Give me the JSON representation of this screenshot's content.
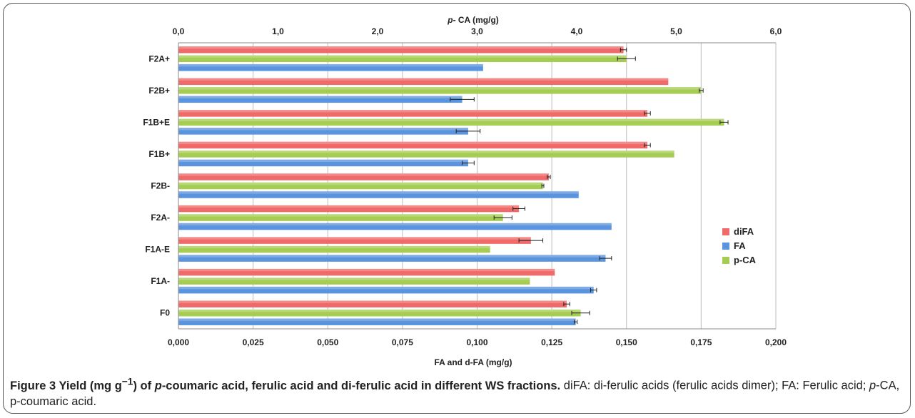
{
  "chart_data": {
    "type": "bar",
    "orientation": "horizontal",
    "categories": [
      "F2A+",
      "F2B+",
      "F1B+E",
      "F1B+",
      "F2B-",
      "F2A-",
      "F1A-E",
      "F1A-",
      "F0"
    ],
    "series": [
      {
        "name": "diFA",
        "color": "#ef6a68",
        "axis": "bottom",
        "values": [
          0.149,
          0.164,
          0.157,
          0.157,
          0.124,
          0.114,
          0.118,
          0.126,
          0.13
        ],
        "errors": [
          0.001,
          0.0,
          0.001,
          0.001,
          0.0005,
          0.002,
          0.004,
          0.0,
          0.001
        ]
      },
      {
        "name": "p-CA",
        "color": "#a6cd53",
        "axis": "top",
        "values": [
          4.5,
          5.25,
          5.48,
          4.98,
          3.66,
          3.26,
          3.13,
          3.53,
          4.04
        ],
        "errors": [
          0.09,
          0.02,
          0.04,
          0.0,
          0.01,
          0.09,
          0.0,
          0.0,
          0.09
        ]
      },
      {
        "name": "FA",
        "color": "#5b94de",
        "axis": "bottom",
        "values": [
          0.102,
          0.095,
          0.097,
          0.097,
          0.134,
          0.145,
          0.143,
          0.139,
          0.133
        ],
        "errors": [
          0.0,
          0.004,
          0.004,
          0.002,
          0.0,
          0.0,
          0.002,
          0.001,
          0.0005
        ]
      }
    ],
    "x_bottom": {
      "label": "FA and d-FA (mg/g)",
      "lim": [
        0,
        0.2
      ],
      "ticks": [
        "0,000",
        "0,025",
        "0,050",
        "0,075",
        "0,100",
        "0,125",
        "0,150",
        "0,175",
        "0,200"
      ]
    },
    "x_top": {
      "label_italic": "p",
      "label_rest": "- CA (mg/g)",
      "lim": [
        0,
        6
      ],
      "ticks": [
        "0,0",
        "1,0",
        "2,0",
        "3,0",
        "4,0",
        "5,0",
        "6,0"
      ]
    },
    "grid": "vertical",
    "legend": {
      "placement": "right",
      "entries": [
        "diFA",
        "FA",
        "p-CA"
      ]
    }
  },
  "caption": {
    "lead_1": "Figure 3 Yield (mg g",
    "lead_sup": "−1",
    "lead_2": ") of ",
    "lead_ital": "p",
    "lead_3": "-coumaric acid, ferulic acid and di-ferulic acid in different WS fractions.",
    "rest_1": " diFA: di-ferulic acids (ferulic acids dimer); FA: Ferulic acid; ",
    "rest_ital": "p",
    "rest_2": "-CA, p-coumaric acid."
  },
  "colors": {
    "gridline": "#bdbdbd",
    "axis": "#8a8a8a",
    "error_bar": "#222222"
  }
}
